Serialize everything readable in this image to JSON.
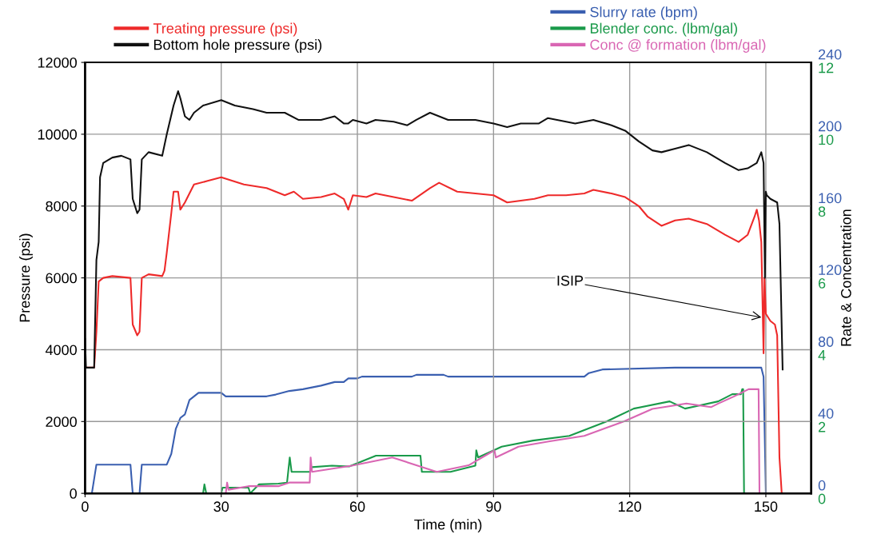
{
  "chart_data": {
    "type": "line",
    "xlabel": "Time (min)",
    "ylabel": "Pressure (psi)",
    "y2label": "Rate & Concentration",
    "xlim": [
      0,
      160
    ],
    "xticks": [
      0,
      30,
      60,
      90,
      120,
      150
    ],
    "ylim": [
      0,
      12000
    ],
    "yticks": [
      0,
      2000,
      4000,
      6000,
      8000,
      10000,
      12000
    ],
    "y2lim": [
      0,
      240
    ],
    "y2ticks": [
      0,
      40,
      80,
      120,
      160,
      200,
      240
    ],
    "y3lim": [
      0,
      12
    ],
    "y3ticks": [
      0,
      2,
      4,
      6,
      8,
      10,
      12
    ],
    "grid": true,
    "legend": "top",
    "line_style": "solid",
    "annotations": [
      {
        "text": "ISIP",
        "x": 149,
        "y": 4900
      }
    ],
    "series": [
      {
        "name": "Treating pressure (psi)",
        "color": "#ee2a2a",
        "x": [
          0,
          2,
          2.5,
          3,
          4,
          6,
          10,
          10.5,
          11.5,
          12,
          12.5,
          14,
          17,
          17.5,
          18,
          19,
          19.5,
          20.5,
          21,
          22,
          24,
          27,
          30,
          35,
          40,
          44,
          46,
          48,
          52,
          55,
          57,
          58,
          59,
          62,
          64,
          68,
          72,
          76,
          78,
          82,
          86,
          90,
          93,
          96,
          99,
          102,
          106,
          110,
          112,
          116,
          119,
          122,
          124,
          127,
          130,
          133,
          137,
          141,
          144,
          146,
          147.5,
          148,
          148.5,
          149,
          149.5,
          149.7,
          150,
          151,
          152,
          152.5,
          153,
          153.5
        ],
        "values": [
          3500,
          3500,
          4500,
          5900,
          6000,
          6050,
          6000,
          4700,
          4400,
          4500,
          6000,
          6100,
          6050,
          6200,
          6700,
          7800,
          8400,
          8400,
          7900,
          8100,
          8600,
          8700,
          8800,
          8600,
          8500,
          8300,
          8400,
          8200,
          8250,
          8350,
          8200,
          7900,
          8300,
          8250,
          8350,
          8250,
          8150,
          8500,
          8650,
          8400,
          8350,
          8300,
          8100,
          8150,
          8200,
          8300,
          8300,
          8350,
          8450,
          8350,
          8250,
          8000,
          7700,
          7450,
          7600,
          7650,
          7500,
          7200,
          7000,
          7200,
          7700,
          7900,
          7600,
          7000,
          3900,
          6000,
          5000,
          4800,
          4700,
          4400,
          1000,
          0
        ]
      },
      {
        "name": "Bottom hole pressure (psi)",
        "color": "#111111",
        "x": [
          0,
          0.2,
          2,
          2.5,
          3,
          3.3,
          4,
          6,
          8,
          10,
          10.5,
          11.5,
          12,
          12.5,
          14,
          17,
          18,
          19.5,
          20.5,
          21,
          22,
          23,
          24,
          26,
          30,
          33,
          37,
          40,
          44,
          47,
          52,
          55,
          57,
          58,
          59,
          62,
          64,
          68,
          71,
          73,
          76,
          78,
          80,
          86,
          90,
          93,
          96,
          100,
          102,
          104,
          108,
          112,
          116,
          119,
          122,
          125,
          127,
          130,
          133,
          137,
          141,
          144,
          146,
          148,
          149,
          149.5,
          149.8,
          150,
          150.2,
          151,
          152.5,
          153,
          153.7
        ],
        "values": [
          4300,
          3500,
          3500,
          6500,
          7000,
          8800,
          9200,
          9350,
          9400,
          9300,
          8200,
          7800,
          7900,
          9300,
          9500,
          9400,
          10000,
          10800,
          11200,
          11000,
          10500,
          10400,
          10600,
          10800,
          10950,
          10800,
          10700,
          10600,
          10600,
          10400,
          10400,
          10500,
          10300,
          10300,
          10400,
          10300,
          10400,
          10350,
          10250,
          10400,
          10600,
          10500,
          10400,
          10400,
          10300,
          10200,
          10300,
          10300,
          10450,
          10400,
          10300,
          10400,
          10250,
          10100,
          9800,
          9550,
          9500,
          9600,
          9700,
          9500,
          9200,
          9000,
          9050,
          9200,
          9500,
          9200,
          6000,
          8400,
          8300,
          8200,
          8100,
          7500,
          3450
        ]
      },
      {
        "name": "Slurry rate (bpm)",
        "color": "#3a5fb0",
        "axis": "y2",
        "x": [
          0,
          1.5,
          2.5,
          10,
          10.5,
          12,
          12.5,
          18,
          19,
          20,
          21,
          22,
          23,
          25,
          30,
          31,
          40,
          42,
          45,
          48,
          52,
          55,
          57,
          58,
          60,
          61,
          72,
          73,
          79,
          80,
          110,
          111,
          114,
          130,
          149,
          149.5,
          150
        ],
        "values": [
          0,
          0,
          16,
          16,
          0,
          0,
          16,
          16,
          22,
          36,
          42,
          44,
          52,
          56,
          56,
          54,
          54,
          55,
          57,
          58,
          60,
          62,
          62,
          64,
          64,
          65,
          65,
          66,
          66,
          65,
          65,
          67,
          69,
          70,
          70,
          65,
          0
        ]
      },
      {
        "name": "Blender conc. (lbm/gal)",
        "color": "#1a9a4a",
        "axis": "y3",
        "x": [
          0,
          26,
          26.3,
          26.7,
          30,
          30.3,
          36,
          36.4,
          38.3,
          42.6,
          44.5,
          45.1,
          45.5,
          49.5,
          50,
          54.4,
          58.2,
          64.1,
          73.9,
          74.2,
          80.5,
          86,
          86.2,
          86.6,
          91.8,
          98.7,
          106.7,
          114.9,
          120.9,
          128.8,
          132.2,
          139.5,
          142.6,
          144.5,
          144.8,
          145,
          145.2
        ],
        "values": [
          0,
          0,
          0.25,
          0,
          0,
          0.16,
          0.16,
          0,
          0.25,
          0.27,
          0.3,
          1.0,
          0.6,
          0.6,
          0.73,
          0.77,
          0.75,
          1.05,
          1.05,
          0.6,
          0.6,
          0.77,
          1.2,
          1.0,
          1.3,
          1.47,
          1.6,
          2.0,
          2.36,
          2.56,
          2.36,
          2.56,
          2.76,
          2.76,
          2.9,
          2.9,
          0
        ]
      },
      {
        "name": "Conc @ formation (lbm/gal)",
        "color": "#d966b3",
        "axis": "y3",
        "x": [
          0,
          31,
          31.3,
          31.6,
          36,
          42.6,
          45,
          49.5,
          49.7,
          50,
          58.8,
          67.7,
          77.5,
          84.5,
          90.2,
          90.5,
          95.5,
          102.4,
          110,
          118.7,
          125,
          132.5,
          137.9,
          139.5,
          143,
          146.2,
          148.4,
          148.6
        ],
        "values": [
          0,
          0,
          0.3,
          0.1,
          0.2,
          0.2,
          0.3,
          0.3,
          1.0,
          0.6,
          0.77,
          1.0,
          0.6,
          0.78,
          1.2,
          1.0,
          1.3,
          1.45,
          1.6,
          2.0,
          2.35,
          2.5,
          2.4,
          2.5,
          2.7,
          2.9,
          2.9,
          0
        ]
      }
    ]
  }
}
